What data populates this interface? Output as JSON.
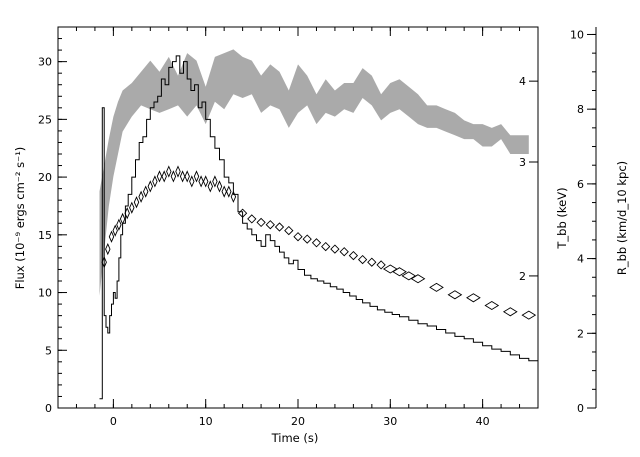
{
  "chart_data": {
    "type": "line",
    "xlabel": "Time (s)",
    "ylabel": "Flux (10⁻⁹ ergs cm⁻² s⁻¹)",
    "ylabel_right_inner": "T_bb (keV)",
    "ylabel_right_outer": "R_bb (km/d_10 kpc)",
    "xlim": [
      -6,
      46
    ],
    "ylim": [
      0,
      33
    ],
    "ylim_outer_right": [
      0,
      10.2
    ],
    "inner_right_ticks": [
      2,
      3,
      4
    ],
    "x_ticks": [
      0,
      10,
      20,
      30,
      40
    ],
    "y_ticks": [
      0,
      5,
      10,
      15,
      20,
      25,
      30
    ],
    "outer_right_ticks": [
      0,
      2,
      4,
      6,
      8,
      10
    ],
    "grid": false,
    "legend": "none",
    "colors": {
      "flux": "#000000",
      "radius_band": "#aaaaaa",
      "temperature": "#000000",
      "frame": "#000000"
    },
    "series": [
      {
        "key": "flux",
        "style": "step",
        "x": [
          -1.5,
          -1.2,
          -1.0,
          -0.8,
          -0.6,
          -0.4,
          -0.2,
          0.0,
          0.2,
          0.4,
          0.6,
          0.8,
          1.0,
          1.3,
          1.6,
          2.0,
          2.4,
          2.8,
          3.2,
          3.6,
          4.0,
          4.4,
          4.8,
          5.2,
          5.6,
          6.0,
          6.4,
          6.8,
          7.2,
          7.6,
          8.0,
          8.4,
          8.8,
          9.2,
          9.6,
          10.0,
          10.5,
          11.0,
          11.5,
          12.0,
          12.5,
          13.0,
          13.5,
          14.0,
          14.5,
          15.0,
          15.5,
          16.0,
          16.5,
          17.0,
          17.5,
          18.0,
          18.5,
          19.0,
          19.5,
          20.0,
          20.7,
          21.4,
          22.1,
          22.8,
          23.5,
          24.2,
          24.9,
          25.6,
          26.3,
          27.0,
          27.8,
          28.6,
          29.4,
          30.2,
          31.0,
          32.0,
          33.0,
          34.0,
          35.0,
          36.0,
          37.0,
          38.0,
          39.0,
          40.0,
          41.0,
          42.0,
          43.0,
          44.0,
          45.0
        ],
        "y": [
          0.8,
          26,
          8,
          7,
          6.5,
          8,
          9,
          10,
          9.5,
          11,
          13,
          15,
          16,
          17.5,
          18.5,
          20,
          21.5,
          23,
          23.5,
          25,
          26,
          26.5,
          27,
          28.5,
          28,
          29.5,
          30,
          30.5,
          29,
          30,
          28.5,
          27.5,
          28,
          26,
          26.5,
          25,
          23.5,
          22.5,
          21.5,
          20,
          19.5,
          18.5,
          17,
          16,
          15.5,
          15,
          14.5,
          14,
          15,
          14.5,
          14,
          13.5,
          13,
          12.5,
          12.8,
          12,
          11.5,
          11.2,
          11,
          10.8,
          10.5,
          10.3,
          10,
          9.7,
          9.4,
          9.1,
          8.8,
          8.5,
          8.3,
          8.1,
          7.9,
          7.6,
          7.3,
          7.1,
          6.8,
          6.5,
          6.2,
          6.0,
          5.7,
          5.4,
          5.1,
          4.9,
          4.6,
          4.3,
          4.1
        ]
      },
      {
        "key": "temperature_keV",
        "style": "open-diamond",
        "x": [
          -1.0,
          -0.6,
          -0.2,
          0.2,
          0.6,
          1.0,
          1.5,
          2.0,
          2.5,
          3.0,
          3.5,
          4.0,
          4.5,
          5.0,
          5.5,
          6.0,
          6.5,
          7.0,
          7.5,
          8.0,
          8.5,
          9.0,
          9.5,
          10.0,
          10.5,
          11.0,
          11.5,
          12.0,
          12.5,
          13.0,
          14.0,
          15.0,
          16.0,
          17.0,
          18.0,
          19.0,
          20.0,
          21.0,
          22.0,
          23.0,
          24.0,
          25.0,
          26.0,
          27.0,
          28.0,
          29.0,
          30.0,
          31.0,
          32.0,
          33.0,
          35.0,
          37.0,
          39.0,
          41.0,
          43.0,
          45.0
        ],
        "y": [
          2.1,
          2.2,
          2.3,
          2.35,
          2.4,
          2.45,
          2.5,
          2.55,
          2.6,
          2.65,
          2.7,
          2.75,
          2.8,
          2.85,
          2.85,
          2.9,
          2.85,
          2.9,
          2.85,
          2.85,
          2.8,
          2.85,
          2.8,
          2.8,
          2.75,
          2.8,
          2.75,
          2.7,
          2.7,
          2.65,
          2.5,
          2.45,
          2.42,
          2.4,
          2.38,
          2.35,
          2.3,
          2.28,
          2.25,
          2.22,
          2.2,
          2.18,
          2.15,
          2.12,
          2.1,
          2.08,
          2.05,
          2.03,
          2.0,
          1.98,
          1.92,
          1.87,
          1.85,
          1.8,
          1.76,
          1.74
        ]
      },
      {
        "key": "radius_band",
        "style": "band",
        "x": [
          -1.5,
          -1.0,
          -0.5,
          0.0,
          0.5,
          1.0,
          2.0,
          3.0,
          4.0,
          5.0,
          6.0,
          7.0,
          8.0,
          9.0,
          10.0,
          11.0,
          12.0,
          13.0,
          14.0,
          15.0,
          16.0,
          17.0,
          18.0,
          19.0,
          20.0,
          21.0,
          22.0,
          23.0,
          24.0,
          25.0,
          26.0,
          27.0,
          28.0,
          29.0,
          30.0,
          31.0,
          32.0,
          33.0,
          34.0,
          35.0,
          36.0,
          37.0,
          38.0,
          39.0,
          40.0,
          41.0,
          42.0,
          43.0,
          44.0,
          45.0
        ],
        "low": [
          3.0,
          4.2,
          5.4,
          6.2,
          6.8,
          7.4,
          7.8,
          8.1,
          8.0,
          7.9,
          8.0,
          8.1,
          7.8,
          8.1,
          7.6,
          8.2,
          8.0,
          8.4,
          8.3,
          8.4,
          7.9,
          8.1,
          8.0,
          7.5,
          7.9,
          8.1,
          7.6,
          7.9,
          7.8,
          8.0,
          7.9,
          8.3,
          8.1,
          7.7,
          7.9,
          8.0,
          7.8,
          7.6,
          7.5,
          7.5,
          7.4,
          7.3,
          7.2,
          7.2,
          7.0,
          7.0,
          7.2,
          6.8,
          6.8,
          6.8
        ],
        "high": [
          5.8,
          6.5,
          7.2,
          7.8,
          8.2,
          8.5,
          8.7,
          9.0,
          9.3,
          9.0,
          9.4,
          8.9,
          9.5,
          9.3,
          8.6,
          9.4,
          9.5,
          9.6,
          9.4,
          9.3,
          8.9,
          9.2,
          9.0,
          8.5,
          9.2,
          8.9,
          8.4,
          8.8,
          8.5,
          8.7,
          8.7,
          9.1,
          8.9,
          8.4,
          8.7,
          8.8,
          8.6,
          8.4,
          8.1,
          8.1,
          8.0,
          7.9,
          7.7,
          7.6,
          7.6,
          7.5,
          7.6,
          7.3,
          7.3,
          7.3
        ]
      }
    ]
  }
}
